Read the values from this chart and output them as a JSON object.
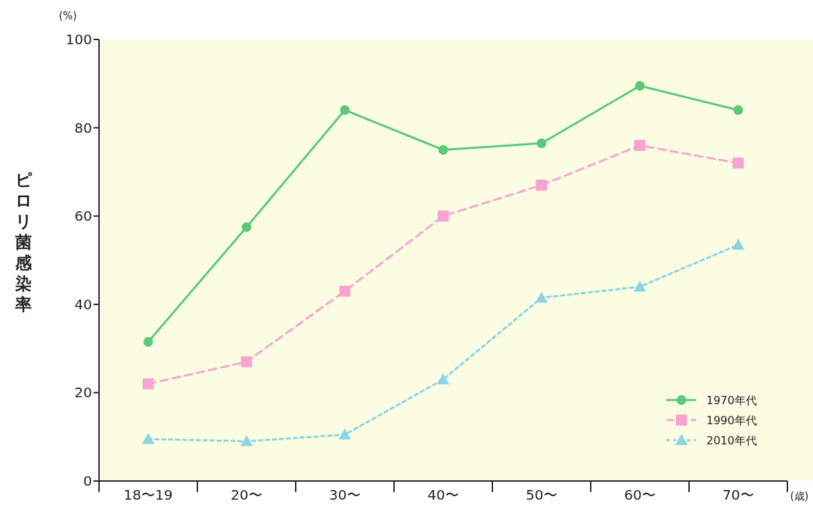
{
  "chart_data": {
    "type": "line",
    "ylabel": "ピロリ菌感染率",
    "xlabel": "(歳)",
    "annotations": [
      "(%)"
    ],
    "categories": [
      "18〜19",
      "20〜",
      "30〜",
      "40〜",
      "50〜",
      "60〜",
      "70〜"
    ],
    "ylim": [
      0,
      100
    ],
    "yticks": [
      0,
      20,
      40,
      60,
      80,
      100
    ],
    "grid": false,
    "legend": "bottom right",
    "series": [
      {
        "name": "1970年代",
        "color": "#5cc878",
        "marker": "circle",
        "line_style": "solid",
        "values": [
          31.5,
          57.5,
          84,
          75,
          76.5,
          89.5,
          84
        ]
      },
      {
        "name": "1990年代",
        "color": "#f9a3d2",
        "marker": "square",
        "line_style": "dashed",
        "values": [
          22,
          27,
          43,
          60,
          67,
          76,
          72
        ]
      },
      {
        "name": "2010年代",
        "color": "#8dd3e6",
        "marker": "triangle",
        "line_style": "dotted",
        "values": [
          9.5,
          9,
          10.5,
          23,
          41.5,
          44,
          53.5
        ]
      }
    ]
  }
}
